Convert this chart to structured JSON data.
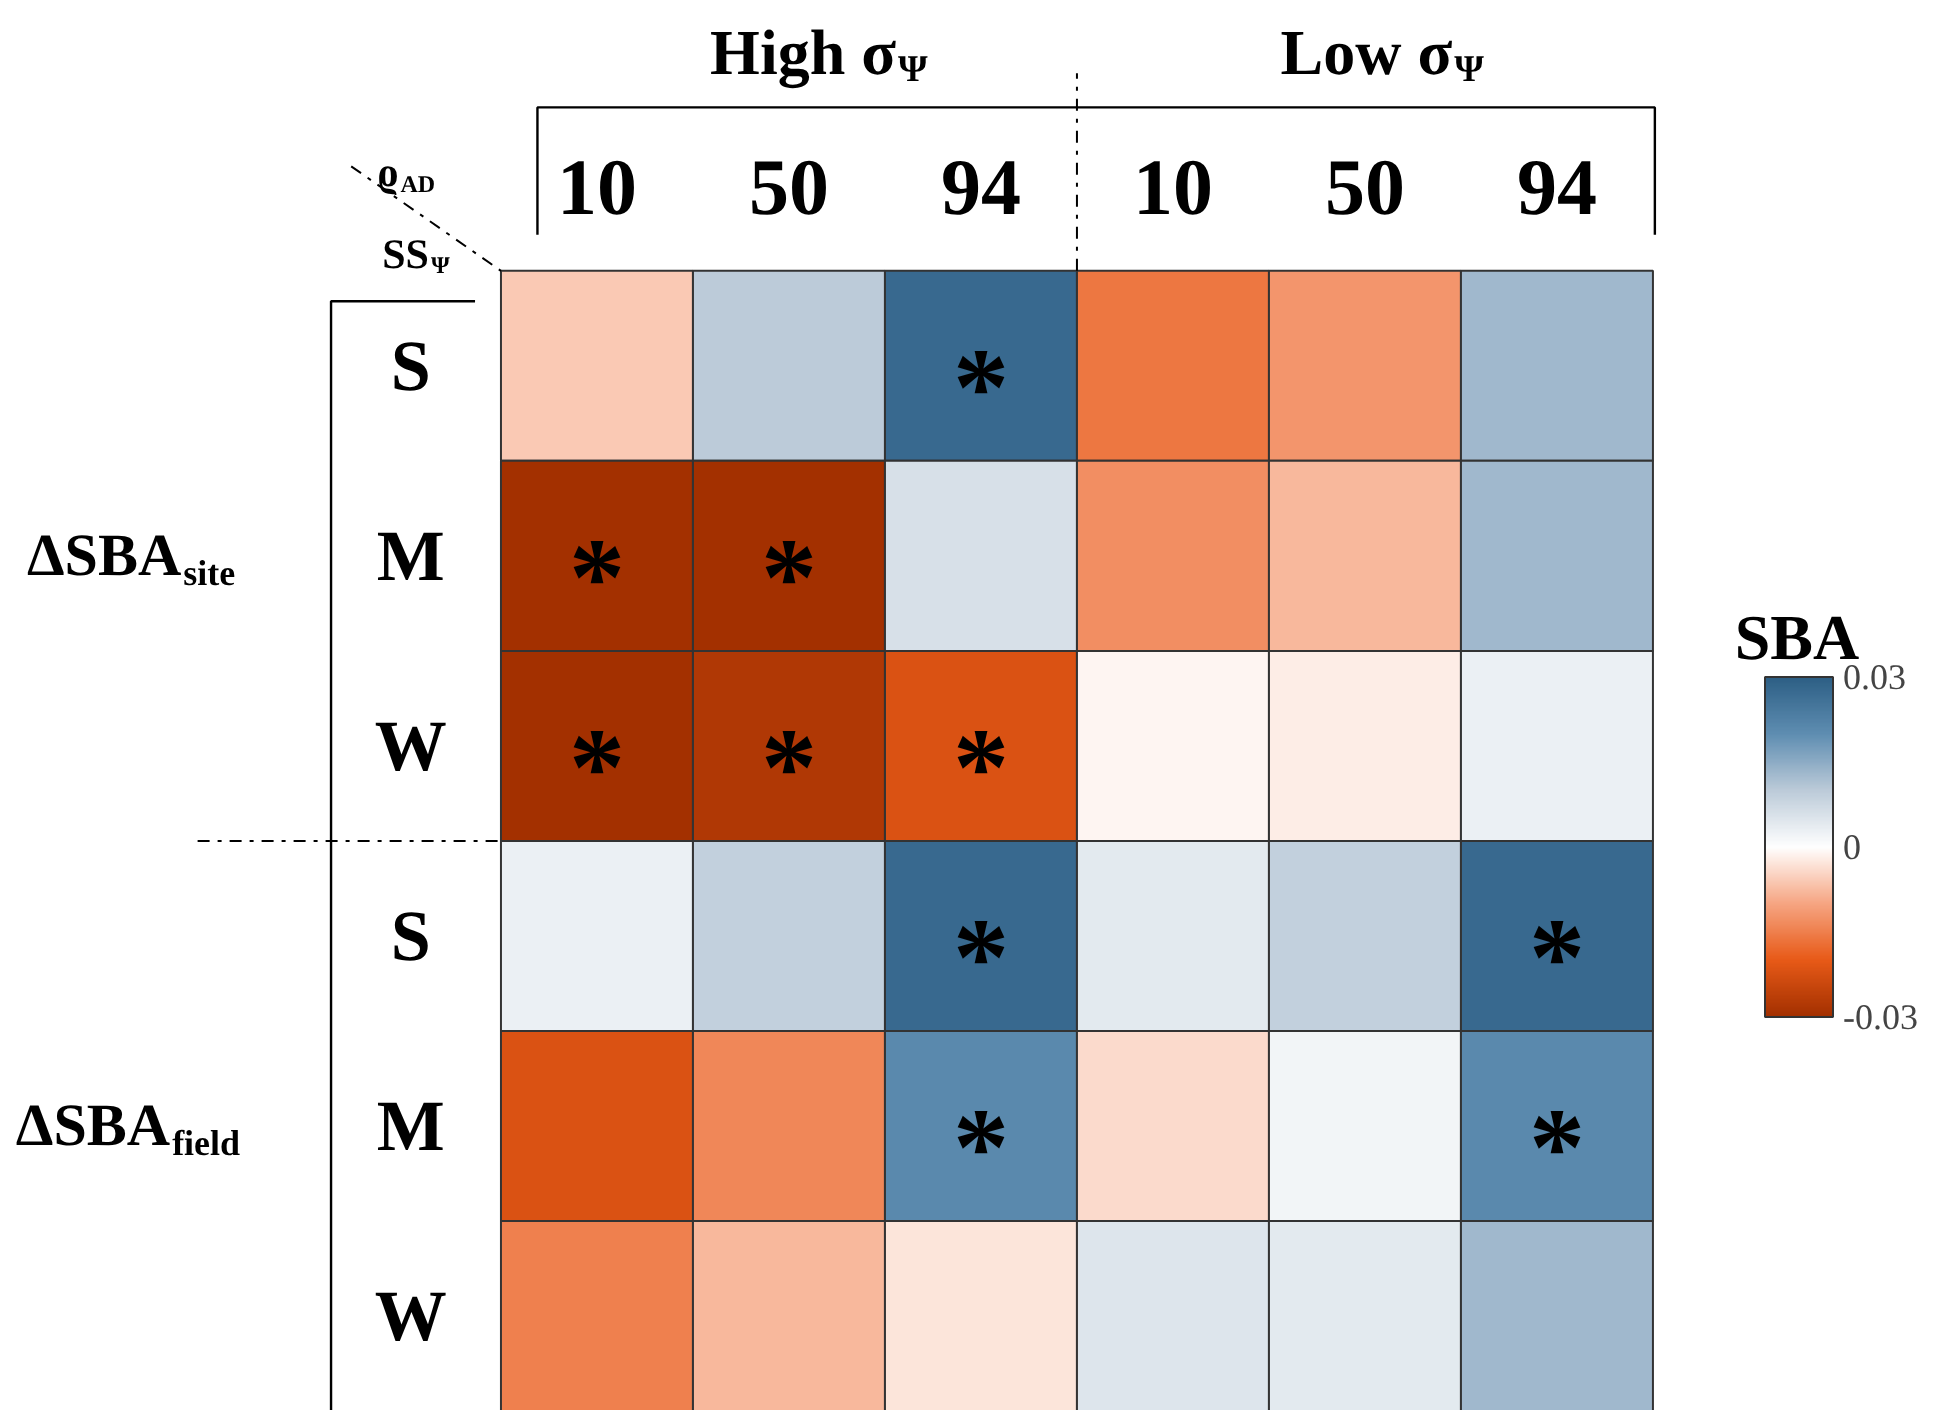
{
  "chart_data": {
    "type": "heatmap",
    "categories": [
      "10",
      "50",
      "94",
      "10",
      "50",
      "94"
    ],
    "y_categories": [
      "S",
      "M",
      "W",
      "S",
      "M",
      "W"
    ],
    "xlabel": "ϱ$_{AD}$",
    "ylabel": "SS$_{Ψ}$",
    "annotations": [
      "High σ$_{Ψ}$",
      "Low σ$_{Ψ}$",
      "ΔSBA$_{site}$",
      "ΔSBA$_{field}$"
    ],
    "cells": [
      [
        -0.006,
        0.01,
        0.028,
        -0.016,
        -0.012,
        0.013
      ],
      [
        -0.03,
        -0.03,
        0.006,
        -0.013,
        -0.008,
        0.013
      ],
      [
        -0.03,
        -0.028,
        -0.022,
        -0.001,
        -0.002,
        0.003
      ],
      [
        0.003,
        0.009,
        0.028,
        0.004,
        0.009,
        0.028
      ],
      [
        -0.022,
        -0.014,
        0.021,
        -0.004,
        0.002,
        0.021
      ],
      [
        -0.015,
        -0.008,
        -0.003,
        0.005,
        0.004,
        0.013
      ]
    ],
    "cell_labels": [
      [
        null,
        null,
        "*",
        null,
        null,
        null
      ],
      [
        "*",
        "*",
        null,
        null,
        null,
        null
      ],
      [
        "*",
        "*",
        "*",
        null,
        null,
        null
      ],
      [
        null,
        null,
        "*",
        null,
        null,
        "*"
      ],
      [
        null,
        null,
        "*",
        null,
        null,
        "*"
      ],
      [
        null,
        null,
        null,
        null,
        null,
        null
      ]
    ],
    "clabel": "SBA",
    "clim": [
      -0.03,
      0.03
    ],
    "cticks": [
      -0.03,
      0,
      0.03
    ]
  }
}
